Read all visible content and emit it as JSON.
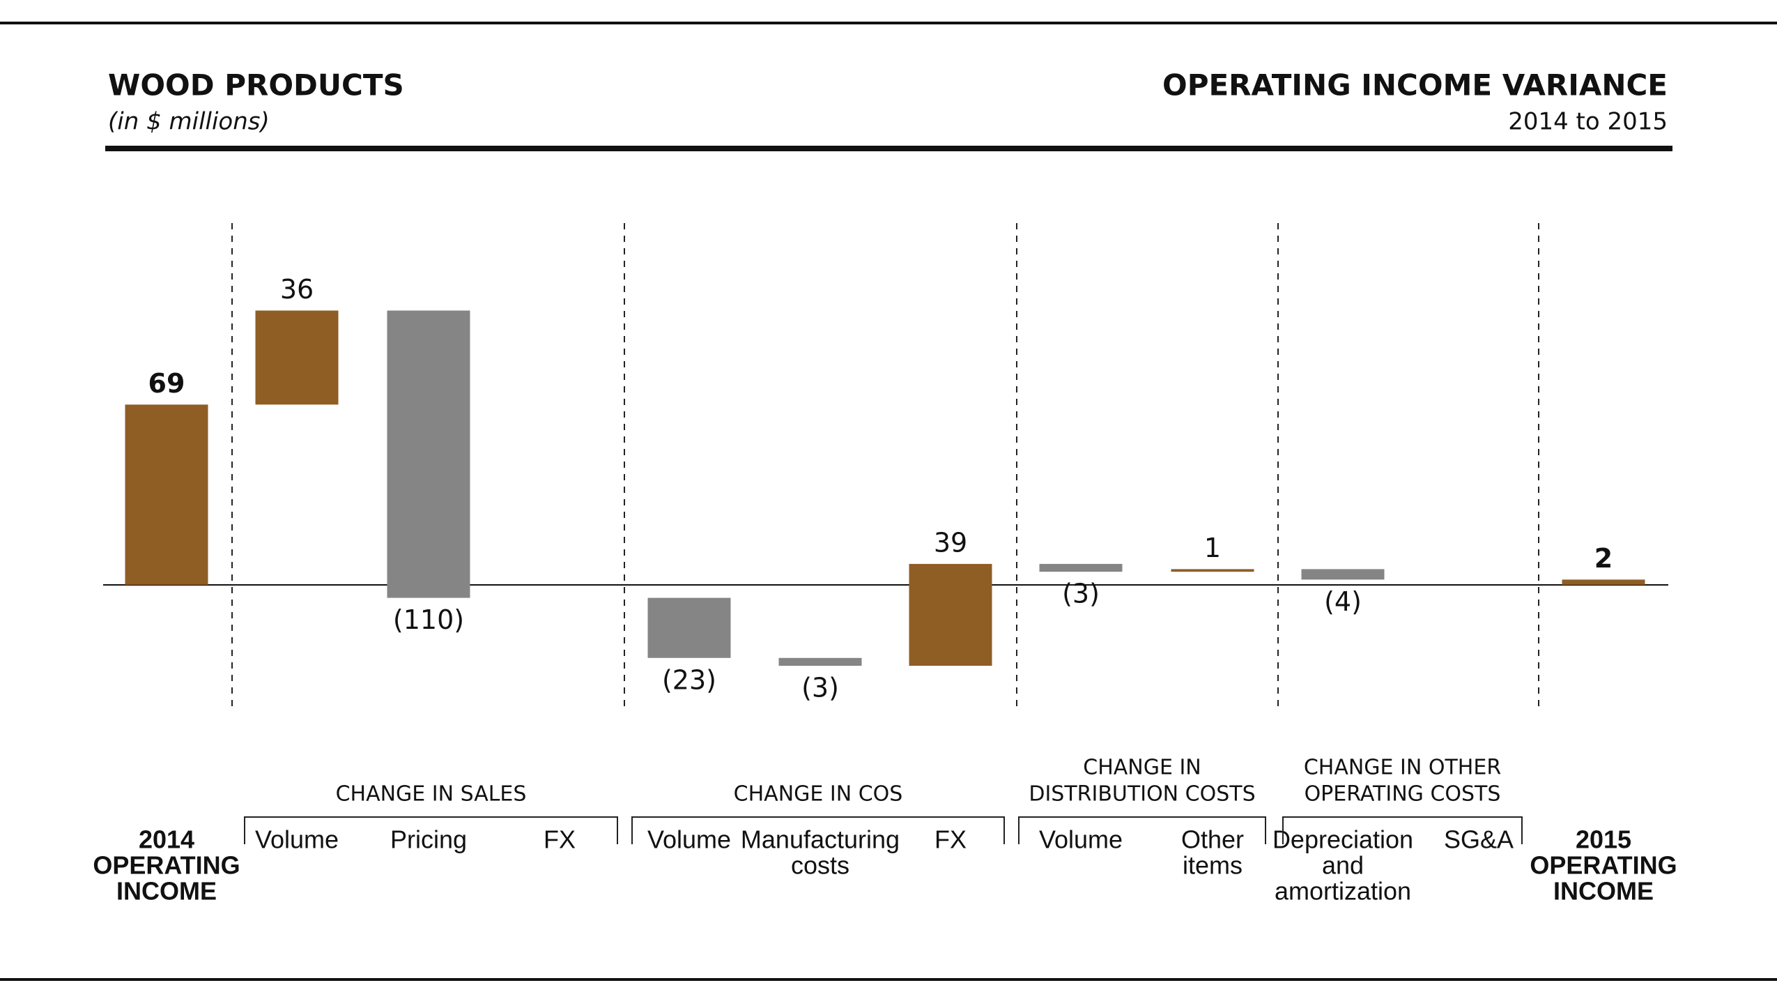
{
  "chart_data": {
    "type": "waterfall",
    "title": "WOOD PRODUCTS",
    "subtitle": "(in $ millions)",
    "right_title": "OPERATING INCOME VARIANCE",
    "right_subtitle": "2014 to 2015",
    "categories": [
      [
        "2014",
        "OPERATING",
        "INCOME"
      ],
      [
        "Volume"
      ],
      [
        "Pricing"
      ],
      [
        "FX"
      ],
      [
        "Volume"
      ],
      [
        "Manufacturing",
        "costs"
      ],
      [
        "FX"
      ],
      [
        "Volume"
      ],
      [
        "Other",
        "items"
      ],
      [
        "Depreciation",
        "and",
        "amortization"
      ],
      [
        "SG&A"
      ],
      [
        "2015",
        "OPERATING",
        "INCOME"
      ]
    ],
    "measure": [
      "total",
      "relative",
      "relative",
      "relative",
      "relative",
      "relative",
      "relative",
      "relative",
      "relative",
      "relative",
      "relative",
      "total"
    ],
    "values": [
      69,
      36,
      -110,
      null,
      -23,
      -3,
      39,
      -3,
      1,
      -4,
      null,
      2
    ],
    "value_labels": [
      "69",
      "36",
      "(110)",
      null,
      "(23)",
      "(3)",
      "39",
      "(3)",
      "1",
      "(4)",
      null,
      "2"
    ],
    "groups": [
      {
        "label": [
          "CHANGE IN SALES"
        ],
        "span": [
          1,
          3
        ]
      },
      {
        "label": [
          "CHANGE IN COS"
        ],
        "span": [
          4,
          6
        ]
      },
      {
        "label": [
          "CHANGE IN",
          "DISTRIBUTION COSTS"
        ],
        "span": [
          7,
          8
        ]
      },
      {
        "label": [
          "CHANGE IN OTHER",
          "OPERATING COSTS"
        ],
        "span": [
          9,
          10
        ]
      }
    ],
    "colors": {
      "positive": "#8f5e24",
      "negative": "#858585"
    },
    "ylim": [
      -35,
      115
    ]
  }
}
